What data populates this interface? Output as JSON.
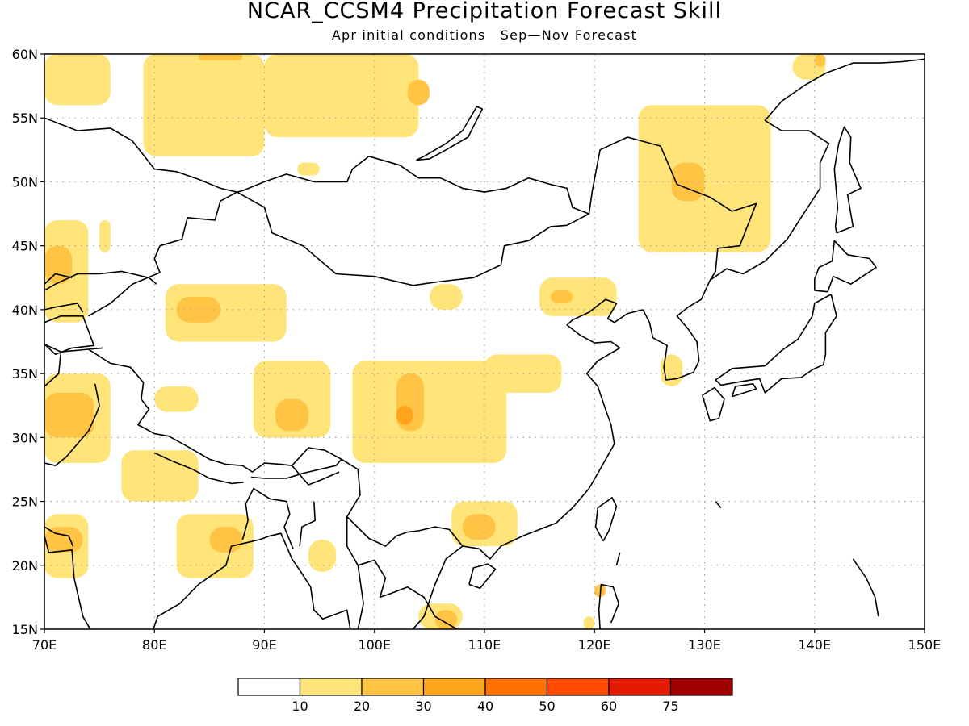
{
  "header": {
    "title": "NCAR_CCSM4 Precipitation Forecast Skill",
    "subtitle_left": "Apr initial conditions",
    "subtitle_right": "Sep—Nov Forecast"
  },
  "map": {
    "lon_range": [
      70,
      150
    ],
    "lat_range": [
      15,
      60
    ],
    "lon_ticks": [
      "70E",
      "80E",
      "90E",
      "100E",
      "110E",
      "120E",
      "130E",
      "140E",
      "150E"
    ],
    "lat_ticks": [
      "60N",
      "55N",
      "50N",
      "45N",
      "40N",
      "35N",
      "30N",
      "25N",
      "20N",
      "15N"
    ],
    "grid": true,
    "coastline_color": "#000000"
  },
  "colorbar": {
    "labels": [
      "10",
      "20",
      "30",
      "40",
      "50",
      "60",
      "75"
    ],
    "colors": [
      "#ffffff",
      "#ffe47a",
      "#ffc444",
      "#ffa51b",
      "#ff7200",
      "#ff4a00",
      "#e31b00",
      "#a00000"
    ]
  },
  "chart_data": {
    "type": "heatmap",
    "title": "NCAR_CCSM4 Precipitation Forecast Skill",
    "subtitle": "Apr initial conditions  Sep—Nov Forecast",
    "xlim": [
      70,
      150
    ],
    "ylim": [
      15,
      60
    ],
    "levels": [
      10,
      20,
      30,
      40,
      50,
      60,
      75
    ],
    "skill_regions": [
      {
        "level": 10,
        "lon": [
          70,
          76
        ],
        "lat": [
          56,
          60
        ]
      },
      {
        "level": 10,
        "lon": [
          79,
          90
        ],
        "lat": [
          52,
          60
        ]
      },
      {
        "level": 10,
        "lon": [
          90,
          104
        ],
        "lat": [
          53.5,
          60
        ]
      },
      {
        "level": 20,
        "lon": [
          103,
          105
        ],
        "lat": [
          56,
          58
        ]
      },
      {
        "level": 20,
        "lon": [
          84,
          88
        ],
        "lat": [
          59.5,
          60
        ]
      },
      {
        "level": 10,
        "lon": [
          93,
          95
        ],
        "lat": [
          50.5,
          51.5
        ]
      },
      {
        "level": 10,
        "lon": [
          138,
          141
        ],
        "lat": [
          58,
          60
        ]
      },
      {
        "level": 20,
        "lon": [
          140,
          141
        ],
        "lat": [
          59,
          60
        ]
      },
      {
        "level": 10,
        "lon": [
          124,
          136
        ],
        "lat": [
          44.5,
          56
        ]
      },
      {
        "level": 20,
        "lon": [
          127,
          130
        ],
        "lat": [
          48.5,
          51.5
        ]
      },
      {
        "level": 10,
        "lon": [
          70,
          74
        ],
        "lat": [
          39,
          47
        ]
      },
      {
        "level": 20,
        "lon": [
          70,
          72.5
        ],
        "lat": [
          42,
          45
        ]
      },
      {
        "level": 10,
        "lon": [
          75,
          76
        ],
        "lat": [
          44.5,
          47
        ]
      },
      {
        "level": 10,
        "lon": [
          81,
          92
        ],
        "lat": [
          37.5,
          42
        ]
      },
      {
        "level": 20,
        "lon": [
          82,
          86
        ],
        "lat": [
          39,
          41
        ]
      },
      {
        "level": 10,
        "lon": [
          115,
          122
        ],
        "lat": [
          39.5,
          42.5
        ]
      },
      {
        "level": 20,
        "lon": [
          116,
          118
        ],
        "lat": [
          40.5,
          41.5
        ]
      },
      {
        "level": 10,
        "lon": [
          105,
          108
        ],
        "lat": [
          40,
          42
        ]
      },
      {
        "level": 10,
        "lon": [
          110,
          117
        ],
        "lat": [
          33.5,
          36.5
        ]
      },
      {
        "level": 10,
        "lon": [
          70,
          76
        ],
        "lat": [
          28,
          35
        ]
      },
      {
        "level": 20,
        "lon": [
          70,
          74.5
        ],
        "lat": [
          30,
          33.5
        ]
      },
      {
        "level": 10,
        "lon": [
          80,
          84
        ],
        "lat": [
          32,
          34
        ]
      },
      {
        "level": 10,
        "lon": [
          89,
          96
        ],
        "lat": [
          30,
          36
        ]
      },
      {
        "level": 20,
        "lon": [
          91,
          94
        ],
        "lat": [
          30.5,
          33
        ]
      },
      {
        "level": 10,
        "lon": [
          98,
          112
        ],
        "lat": [
          28,
          36
        ]
      },
      {
        "level": 20,
        "lon": [
          102,
          104.5
        ],
        "lat": [
          30.5,
          35
        ]
      },
      {
        "level": 30,
        "lon": [
          102,
          103.5
        ],
        "lat": [
          31,
          32.5
        ]
      },
      {
        "level": 10,
        "lon": [
          77,
          84
        ],
        "lat": [
          25,
          29
        ]
      },
      {
        "level": 10,
        "lon": [
          70,
          74
        ],
        "lat": [
          19,
          24
        ]
      },
      {
        "level": 20,
        "lon": [
          70,
          73.5
        ],
        "lat": [
          21,
          23
        ]
      },
      {
        "level": 10,
        "lon": [
          82,
          89
        ],
        "lat": [
          19,
          24
        ]
      },
      {
        "level": 20,
        "lon": [
          85,
          88
        ],
        "lat": [
          21,
          23
        ]
      },
      {
        "level": 10,
        "lon": [
          107,
          113
        ],
        "lat": [
          21.5,
          25
        ]
      },
      {
        "level": 20,
        "lon": [
          108,
          111
        ],
        "lat": [
          22,
          24
        ]
      },
      {
        "level": 10,
        "lon": [
          94,
          96.5
        ],
        "lat": [
          19.5,
          22
        ]
      },
      {
        "level": 10,
        "lon": [
          104,
          108
        ],
        "lat": [
          15,
          17
        ]
      },
      {
        "level": 20,
        "lon": [
          105.5,
          107.5
        ],
        "lat": [
          15,
          16.5
        ]
      },
      {
        "level": 10,
        "lon": [
          126,
          128
        ],
        "lat": [
          34,
          36.5
        ]
      },
      {
        "level": 20,
        "lon": [
          120,
          121
        ],
        "lat": [
          17.5,
          18.5
        ]
      },
      {
        "level": 10,
        "lon": [
          119,
          120
        ],
        "lat": [
          15,
          16
        ]
      }
    ]
  }
}
